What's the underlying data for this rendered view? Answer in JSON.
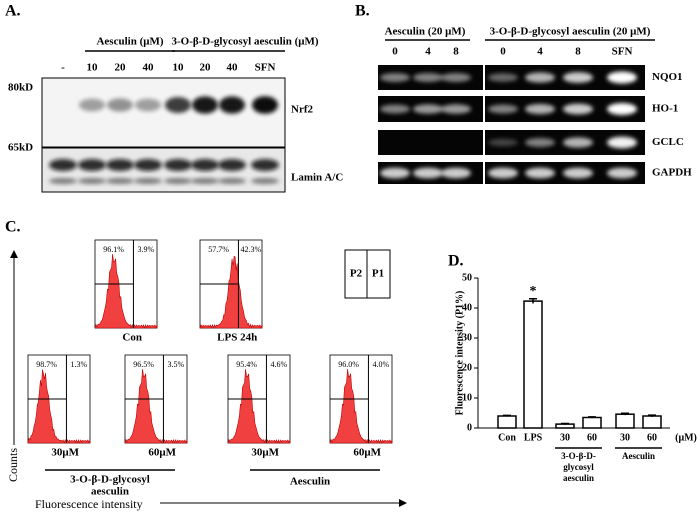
{
  "panel_a": {
    "label": "A.",
    "groups": [
      "Aesculin (μM)",
      "3-O-β-D-glycosyl aesculin (μM)"
    ],
    "lanes": [
      "-",
      "10",
      "20",
      "40",
      "10",
      "20",
      "40",
      "SFN"
    ],
    "markers": [
      "80kD",
      "65kD"
    ],
    "proteins": [
      "Nrf2",
      "Lamin A/C"
    ]
  },
  "panel_b": {
    "label": "B.",
    "groups": [
      "Aesculin (20 μM)",
      "3-O-β-D-glycosyl aesculin (20 μM)"
    ],
    "lanes": [
      "0",
      "4",
      "8",
      "0",
      "4",
      "8",
      "SFN"
    ],
    "genes": [
      "NQO1",
      "HO-1",
      "GCLC",
      "GAPDH"
    ]
  },
  "panel_c": {
    "label": "C.",
    "y_label": "Counts",
    "x_label": "Fluorescence intensity",
    "gate_key": [
      "P2",
      "P1"
    ],
    "plots": [
      {
        "left": "96.1%",
        "right": "3.9%",
        "label": "Con"
      },
      {
        "left": "57.7%",
        "right": "42.3%",
        "label": "LPS 24h"
      },
      {
        "left": "98.7%",
        "right": "1.3%",
        "label": "30μM"
      },
      {
        "left": "96.5%",
        "right": "3.5%",
        "label": "60μM"
      },
      {
        "left": "95.4%",
        "right": "4.6%",
        "label": "30μM"
      },
      {
        "left": "96.0%",
        "right": "4.0%",
        "label": "60μM"
      }
    ],
    "groups": [
      [
        "3-O-β-D-glycosyl",
        "aesculin"
      ],
      [
        "Aesculin"
      ]
    ]
  },
  "chart_data": {
    "type": "bar",
    "label": "D.",
    "y_label": "Fluorescence intensity  (P1%)",
    "categories": [
      "Con",
      "LPS",
      "30",
      "60",
      "30",
      "60"
    ],
    "values": [
      4.0,
      42.3,
      1.3,
      3.5,
      4.6,
      4.0
    ],
    "errors": [
      0.2,
      0.8,
      0.2,
      0.2,
      0.3,
      0.3
    ],
    "color": "#ffffff",
    "edge_color": "#000000",
    "unit": "(μM)",
    "annotations": [
      {
        "text": "*",
        "x": "LPS"
      }
    ],
    "group_labels": [
      [
        "3-O-β-D-",
        "glycosyl",
        "aesculin"
      ],
      [
        "Aesculin"
      ]
    ],
    "ylim": [
      0,
      50
    ],
    "yticks": [
      0,
      10,
      20,
      30,
      40,
      50
    ]
  }
}
